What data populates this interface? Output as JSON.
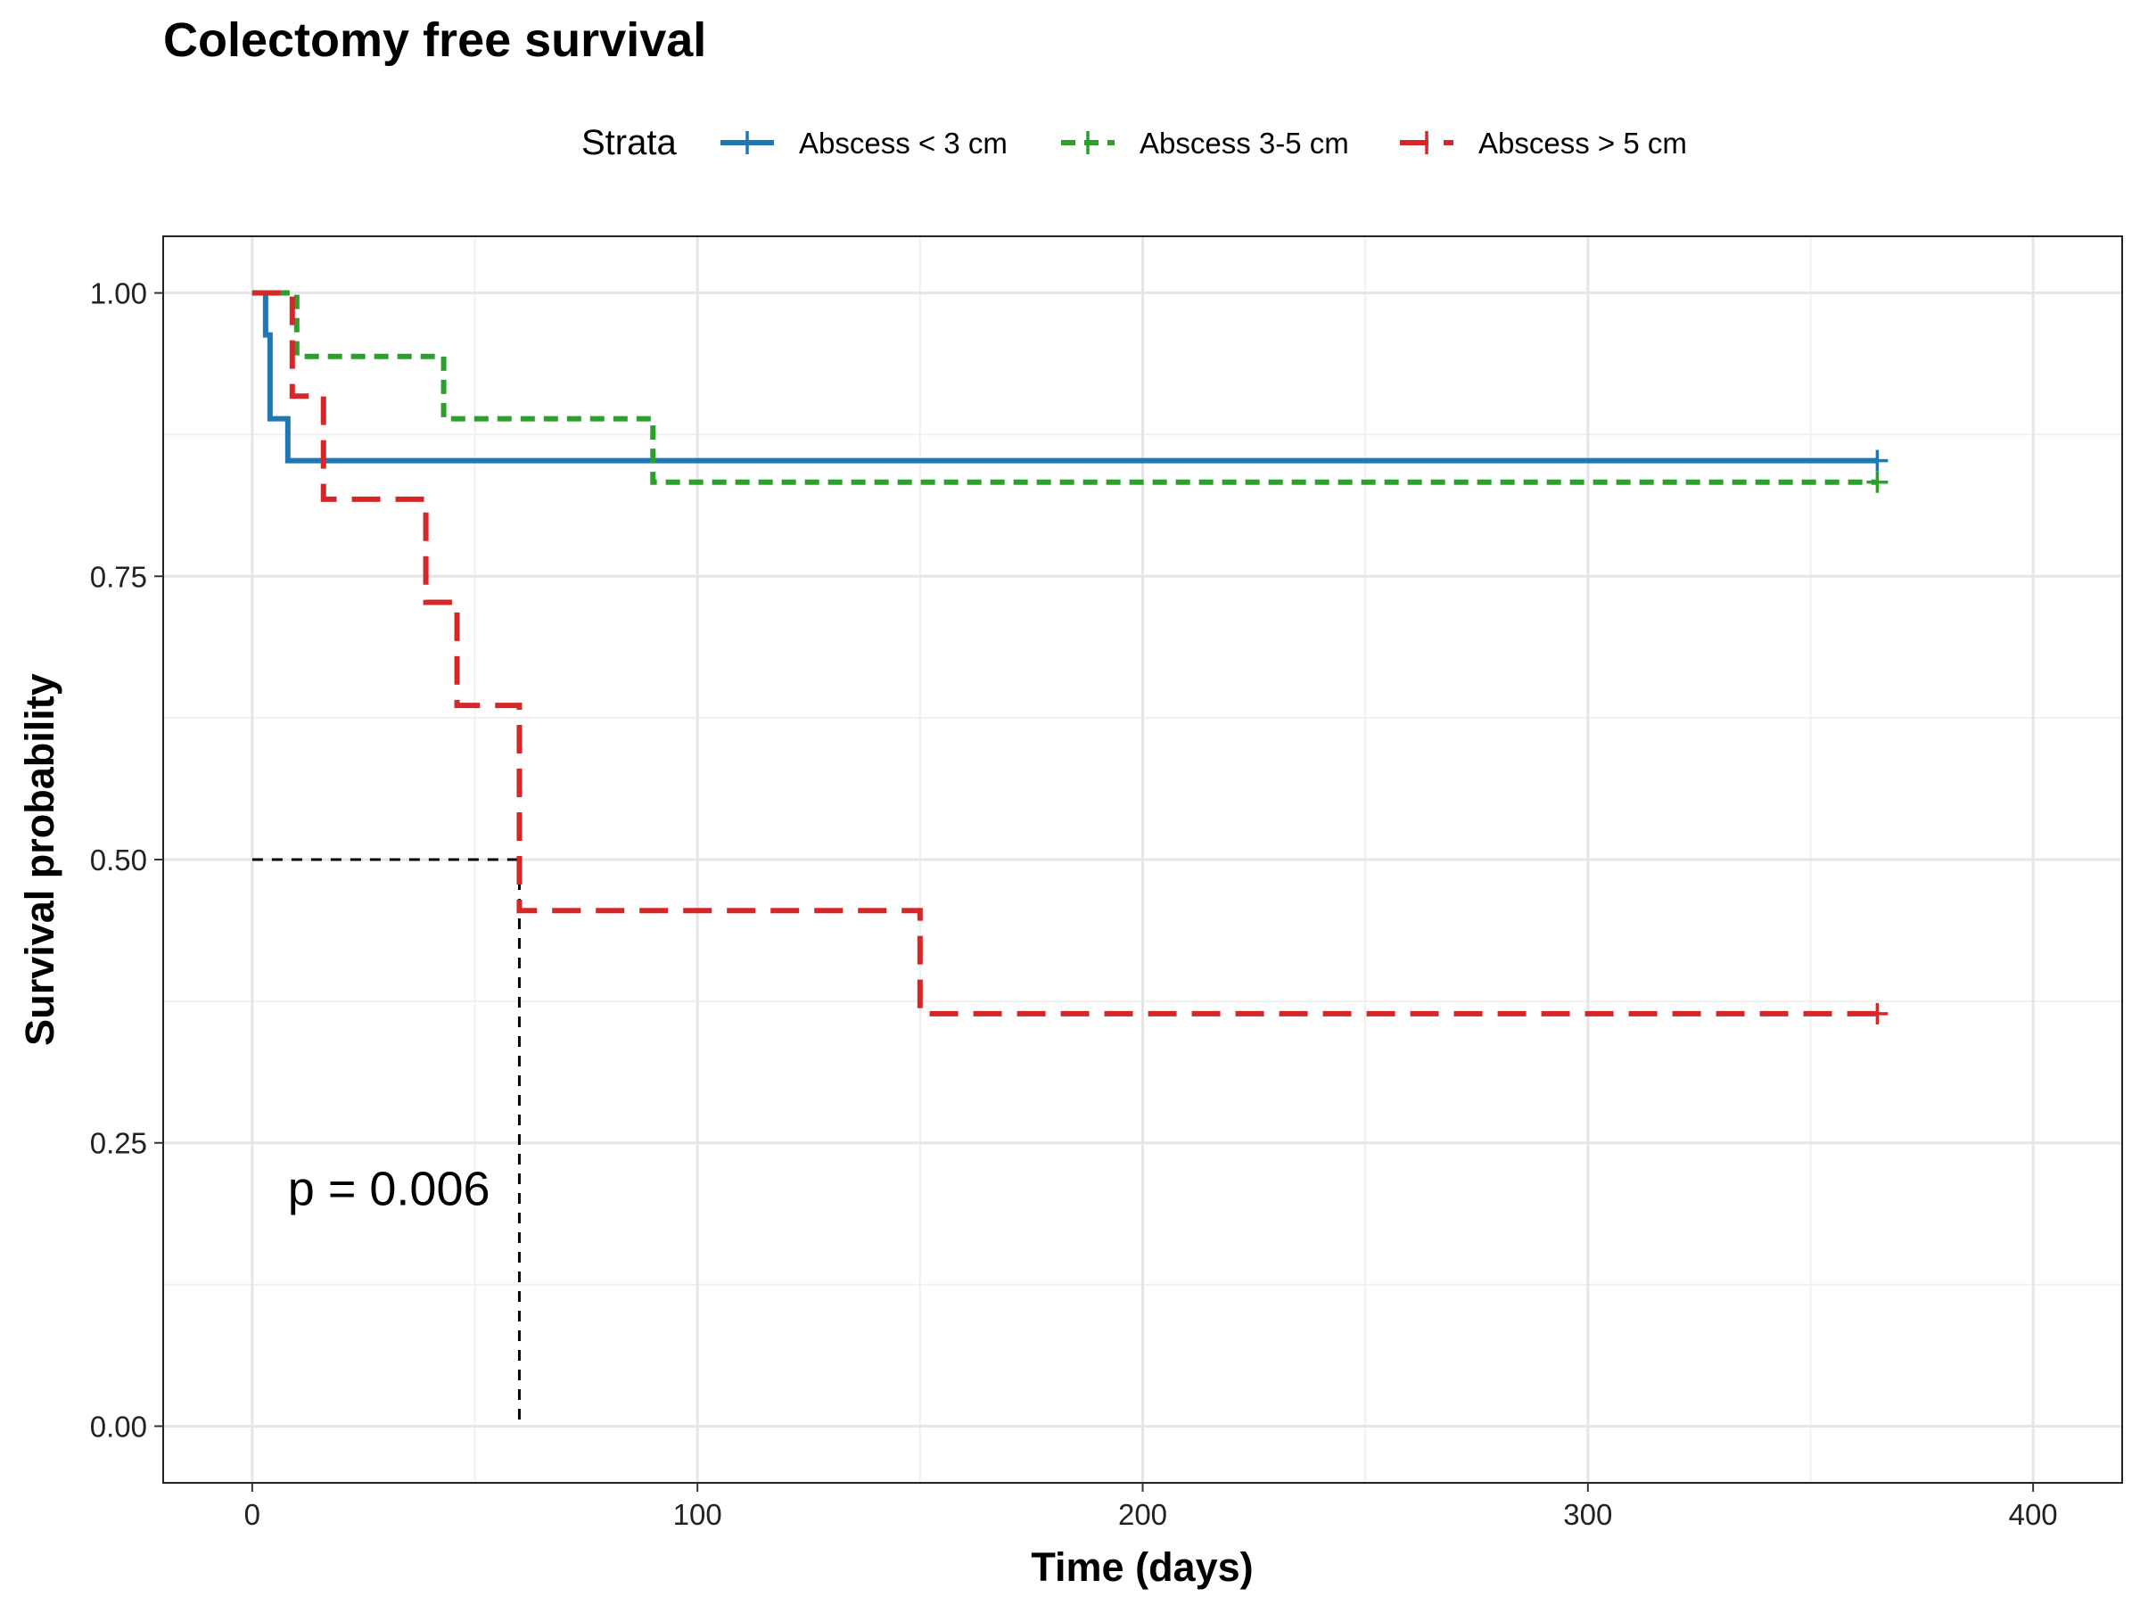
{
  "chart_data": {
    "type": "line",
    "subtype": "kaplan-meier",
    "title": "Colectomy free survival",
    "xlabel": "Time (days)",
    "ylabel": "Survival probability",
    "xlim": [
      -20,
      420
    ],
    "ylim": [
      -0.05,
      1.05
    ],
    "x_ticks": [
      0,
      100,
      200,
      300,
      400
    ],
    "x_tick_labels": [
      "0",
      "100",
      "200",
      "300",
      "400"
    ],
    "y_ticks": [
      0,
      0.25,
      0.5,
      0.75,
      1.0
    ],
    "y_tick_labels": [
      "0.00",
      "0.25",
      "0.50",
      "0.75",
      "1.00"
    ],
    "grid": true,
    "legend": {
      "title": "Strata",
      "position": "top"
    },
    "series": [
      {
        "name": "Abscess < 3 cm",
        "color": "#1f78b4",
        "dash": "solid",
        "steps": [
          [
            0,
            1.0
          ],
          [
            3,
            0.963
          ],
          [
            4,
            0.889
          ],
          [
            8,
            0.852
          ],
          [
            365,
            0.852
          ]
        ],
        "censor": [
          [
            365,
            0.852
          ]
        ]
      },
      {
        "name": "Abscess 3-5 cm",
        "color": "#2ca02c",
        "dash": "dotted",
        "steps": [
          [
            0,
            1.0
          ],
          [
            10,
            0.944
          ],
          [
            43,
            0.889
          ],
          [
            90,
            0.833
          ],
          [
            365,
            0.833
          ]
        ],
        "censor": [
          [
            365,
            0.833
          ]
        ]
      },
      {
        "name": "Abscess > 5 cm",
        "color": "#d62728",
        "dash": "dashed",
        "steps": [
          [
            0,
            1.0
          ],
          [
            9,
            0.909
          ],
          [
            16,
            0.818
          ],
          [
            39,
            0.727
          ],
          [
            46,
            0.636
          ],
          [
            60,
            0.455
          ],
          [
            150,
            0.364
          ],
          [
            365,
            0.364
          ]
        ],
        "censor": [
          [
            365,
            0.364
          ]
        ]
      }
    ],
    "median_line": {
      "y": 0.5,
      "x": 60
    },
    "annotation": {
      "text": "p = 0.006",
      "x": 8,
      "y": 0.195
    }
  }
}
